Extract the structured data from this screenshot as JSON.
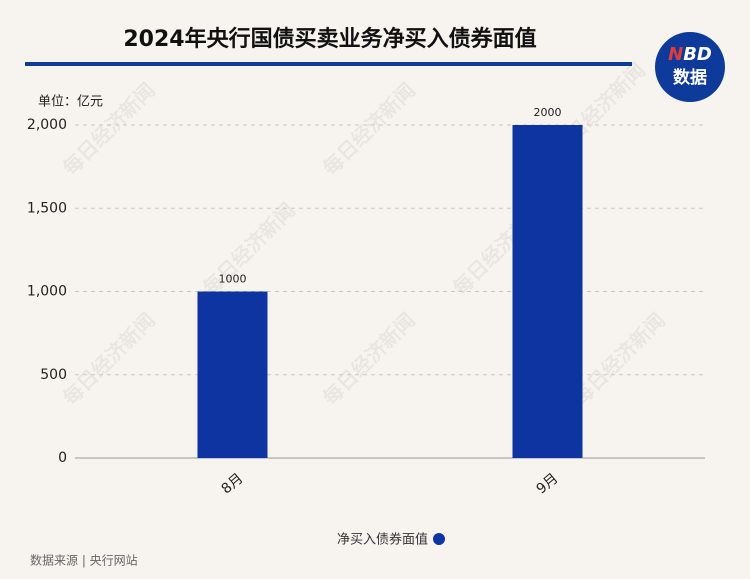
{
  "chart_data": {
    "type": "bar",
    "title": "2024年央行国债买卖业务净买入债券面值",
    "unit": "单位：亿元",
    "categories": [
      "8月",
      "9月"
    ],
    "series": [
      {
        "name": "净买入债券面值",
        "color": "#0d34a0",
        "values": [
          1000,
          2000
        ]
      }
    ],
    "ylim": [
      0,
      2000
    ],
    "yticks": [
      0,
      500,
      {
        "value": 1000,
        "label": "1,000"
      },
      {
        "value": 1500,
        "label": "1,500"
      },
      {
        "value": 2000,
        "label": "2,000"
      }
    ],
    "grid": true,
    "source": "数据来源 | 央行网站",
    "logo": [
      "N",
      "BD",
      "数据"
    ],
    "watermark": "每日经济新闻"
  }
}
